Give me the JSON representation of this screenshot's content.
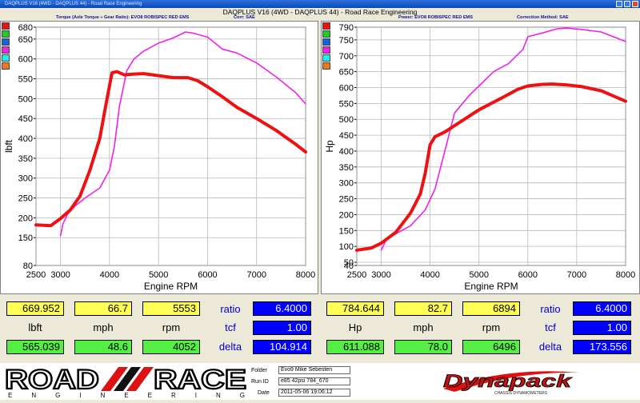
{
  "window": {
    "title": "DAQPLUS V16 (4WD - DAQPLUS 44) - Road Race Engineering"
  },
  "heading": "DAQPLUS V16 (4WD - DAQPLUS 44) - Road Race Engineering",
  "left": {
    "subtitle_1": "Torque (Axle Torque ÷ Gear Ratio): EVO8 ROBISPEC RED EMS",
    "subtitle_2": "Corr: SAE"
  },
  "right": {
    "subtitle_1": "Power: EVO8 ROBISPEC RED EMS",
    "subtitle_2": "Correction Method: SAE"
  },
  "colors": {
    "trace_red": "#ee1111",
    "trace_magenta": "#ee22ee",
    "legend": [
      "#ee1111",
      "#22cc22",
      "#1166dd",
      "#ee22ee",
      "#22eeee",
      "#ee7722"
    ]
  },
  "chart_data": [
    {
      "type": "line",
      "xlabel": "Engine RPM",
      "ylabel": "lbft",
      "xlim": [
        2500,
        8000
      ],
      "ylim": [
        80,
        680
      ],
      "xticks": [
        2500,
        3000,
        4000,
        5000,
        6000,
        7000,
        8000
      ],
      "yticks": [
        80,
        150,
        200,
        250,
        300,
        350,
        400,
        450,
        500,
        550,
        600,
        650,
        680
      ],
      "grid": true,
      "series": [
        {
          "color": "#ee1111",
          "x": [
            2500,
            2800,
            3000,
            3200,
            3400,
            3600,
            3800,
            3950,
            4050,
            4150,
            4300,
            4500,
            4700,
            5000,
            5300,
            5600,
            5800,
            6000,
            6300,
            6600,
            7000,
            7400,
            7800,
            8000
          ],
          "y": [
            182,
            180,
            198,
            220,
            255,
            320,
            400,
            500,
            565,
            568,
            560,
            562,
            563,
            558,
            553,
            553,
            545,
            530,
            505,
            478,
            450,
            420,
            385,
            366
          ]
        },
        {
          "color": "#ee22ee",
          "x": [
            3000,
            3050,
            3150,
            3300,
            3500,
            3800,
            4000,
            4100,
            4200,
            4350,
            4500,
            4700,
            5000,
            5300,
            5550,
            5700,
            6000,
            6300,
            6600,
            7000,
            7400,
            7800,
            8000
          ],
          "y": [
            155,
            185,
            210,
            230,
            250,
            275,
            320,
            380,
            480,
            570,
            600,
            620,
            640,
            653,
            668,
            665,
            655,
            625,
            615,
            590,
            555,
            515,
            487
          ]
        }
      ]
    },
    {
      "type": "line",
      "xlabel": "Engine RPM",
      "ylabel": "Hp",
      "xlim": [
        2500,
        8000
      ],
      "ylim": [
        40,
        790
      ],
      "xticks": [
        2500,
        3000,
        4000,
        5000,
        6000,
        7000,
        8000
      ],
      "yticks": [
        40,
        50,
        100,
        150,
        200,
        250,
        300,
        350,
        400,
        450,
        500,
        550,
        600,
        650,
        700,
        750,
        790
      ],
      "grid": true,
      "series": [
        {
          "color": "#ee1111",
          "x": [
            2500,
            2800,
            3000,
            3300,
            3600,
            3800,
            3900,
            4000,
            4100,
            4300,
            4600,
            5000,
            5500,
            5800,
            6000,
            6300,
            6500,
            6800,
            7100,
            7500,
            8000
          ],
          "y": [
            88,
            95,
            110,
            145,
            205,
            265,
            330,
            420,
            445,
            460,
            490,
            530,
            570,
            595,
            605,
            610,
            611,
            608,
            603,
            590,
            557
          ]
        },
        {
          "color": "#ee22ee",
          "x": [
            3000,
            3100,
            3300,
            3600,
            3900,
            4100,
            4300,
            4500,
            4800,
            5000,
            5300,
            5600,
            5900,
            6000,
            6300,
            6600,
            6800,
            7100,
            7500,
            8000
          ],
          "y": [
            88,
            120,
            140,
            165,
            215,
            280,
            400,
            520,
            575,
            605,
            650,
            675,
            720,
            760,
            772,
            785,
            787,
            783,
            775,
            745
          ]
        }
      ]
    }
  ],
  "readouts": {
    "left": {
      "peak_lbft": "669.952",
      "peak_mph": "66.7",
      "peak_rpm": "5553",
      "label_lbft": "lbft",
      "label_mph": "mph",
      "label_rpm": "rpm",
      "cur_lbft": "565.039",
      "cur_mph": "48.6",
      "cur_rpm": "4052",
      "ratio_label": "ratio",
      "ratio": "6.4000",
      "tcf_label": "tcf",
      "tcf": "1.00",
      "delta_label": "delta",
      "delta": "104.914"
    },
    "right": {
      "peak_hp": "784.644",
      "peak_mph": "82.7",
      "peak_rpm": "6894",
      "label_hp": "Hp",
      "label_mph": "mph",
      "label_rpm": "rpm",
      "cur_hp": "611.088",
      "cur_mph": "78.0",
      "cur_rpm": "6496",
      "ratio_label": "ratio",
      "ratio": "6.4000",
      "tcf_label": "tcf",
      "tcf": "1.00",
      "delta_label": "delta",
      "delta": "173.556"
    }
  },
  "footer": {
    "logo_left": "ROAD//RACE ENGINEERING",
    "logo_road": "ROAD",
    "logo_race": "RACE",
    "logo_engineering": "E N G I N E E R I N G",
    "folder_label": "Folder",
    "folder": "Evo9 Mike Sebesten",
    "runid_label": "Run ID",
    "runid": "e85 42psi 784_670",
    "date_label": "Date",
    "date": "2011-05-06 19:06:12",
    "logo_right": "Dynapack",
    "logo_right_sub": "CHASSIS DYNAMOMETERS"
  }
}
